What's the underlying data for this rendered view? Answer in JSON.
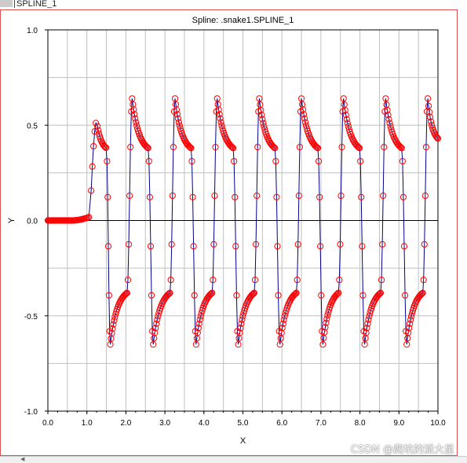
{
  "window": {
    "tab_text": "SPLINE_1",
    "accent_border": "#e05050"
  },
  "watermark": "CSDN @爬坑的派大星",
  "chart_data": {
    "type": "line",
    "title": "Spline: .snake1.SPLINE_1",
    "xlabel": "X",
    "ylabel": "Y",
    "xlim": [
      0.0,
      10.0
    ],
    "ylim": [
      -1.0,
      1.0
    ],
    "xticks": [
      0.0,
      1.0,
      2.0,
      3.0,
      4.0,
      5.0,
      6.0,
      7.0,
      8.0,
      9.0,
      10.0
    ],
    "xtick_labels": [
      "0.0",
      "1.0",
      "2.0",
      "3.0",
      "4.0",
      "5.0",
      "6.0",
      "7.0",
      "8.0",
      "9.0",
      "10.0"
    ],
    "yticks": [
      -1.0,
      -0.5,
      0.0,
      0.5,
      1.0
    ],
    "ytick_labels": [
      "-1.0",
      "-0.5",
      "0.0",
      "0.5",
      "1.0"
    ],
    "grid": true,
    "line_color": "#00008b",
    "marker_color": "#ff0000",
    "marker": "open-circle",
    "onset": {
      "x_start": 0.0,
      "x_ramp_start": 0.6,
      "x_ramp_end": 1.08,
      "y_ramp_end": 0.02
    },
    "first_peak": {
      "x": 1.25,
      "y": 0.52,
      "decay_to_x": 1.5,
      "decay_to_y": 0.38
    },
    "period": 1.08,
    "peak_y": 0.64,
    "trough_y": -0.65,
    "troughs_x": [
      1.6,
      2.7,
      3.8,
      4.88,
      5.95,
      7.05,
      8.12,
      9.2
    ],
    "peaks_x": [
      2.16,
      3.26,
      4.34,
      5.42,
      6.5,
      7.58,
      8.66,
      9.74
    ],
    "crossing_width": 0.13,
    "decay_end_y_peak": 0.38,
    "decay_end_y_trough": -0.38,
    "end": {
      "x": 10.0,
      "y": 0.43
    }
  }
}
